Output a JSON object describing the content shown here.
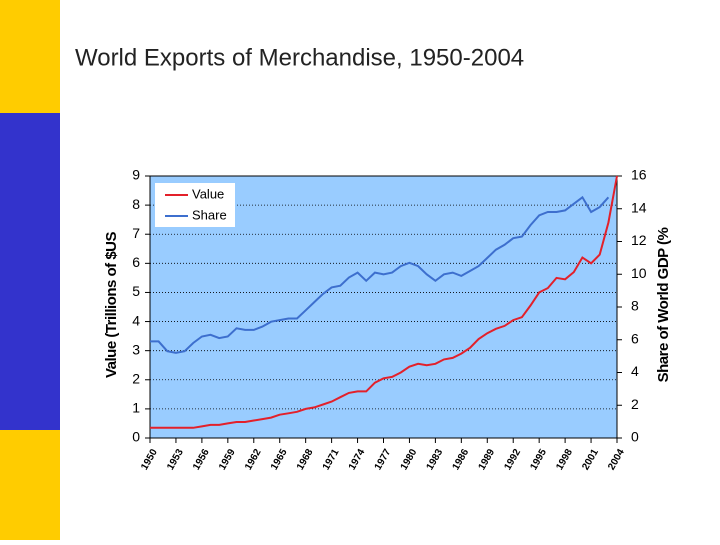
{
  "chart_data": {
    "type": "line",
    "title": "World Exports of Merchandise, 1950-2004",
    "y_label": "Value (Trillions of $US",
    "y2_label": "Share of World GDP (%",
    "x": [
      1950,
      1951,
      1952,
      1953,
      1954,
      1955,
      1956,
      1957,
      1958,
      1959,
      1960,
      1961,
      1962,
      1963,
      1964,
      1965,
      1966,
      1967,
      1968,
      1969,
      1970,
      1971,
      1972,
      1973,
      1974,
      1975,
      1976,
      1977,
      1978,
      1979,
      1980,
      1981,
      1982,
      1983,
      1984,
      1985,
      1986,
      1987,
      1988,
      1989,
      1990,
      1991,
      1992,
      1993,
      1994,
      1995,
      1996,
      1997,
      1998,
      1999,
      2000,
      2001,
      2002,
      2003,
      2004
    ],
    "series": [
      {
        "name": "Value",
        "color": "#e3202a",
        "axis": "y",
        "values": [
          0.35,
          0.35,
          0.35,
          0.35,
          0.35,
          0.35,
          0.4,
          0.45,
          0.45,
          0.5,
          0.55,
          0.55,
          0.6,
          0.65,
          0.7,
          0.8,
          0.85,
          0.9,
          1.0,
          1.05,
          1.15,
          1.25,
          1.4,
          1.55,
          1.6,
          1.6,
          1.9,
          2.05,
          2.1,
          2.25,
          2.45,
          2.55,
          2.5,
          2.55,
          2.7,
          2.75,
          2.9,
          3.1,
          3.4,
          3.6,
          3.75,
          3.85,
          4.05,
          4.15,
          4.55,
          5.0,
          5.15,
          5.5,
          5.45,
          5.7,
          6.2,
          6.0,
          6.3,
          7.4,
          9.0
        ]
      },
      {
        "name": "Share",
        "color": "#3d6fce",
        "axis": "y2",
        "values": [
          5.9,
          5.9,
          5.3,
          5.2,
          5.3,
          5.8,
          6.2,
          6.3,
          6.1,
          6.2,
          6.7,
          6.6,
          6.6,
          6.8,
          7.1,
          7.2,
          7.3,
          7.3,
          7.8,
          8.3,
          8.8,
          9.2,
          9.3,
          9.8,
          10.1,
          9.6,
          10.1,
          10.0,
          10.1,
          10.5,
          10.7,
          10.5,
          10.0,
          9.6,
          10.0,
          10.1,
          9.9,
          10.2,
          10.5,
          11.0,
          11.5,
          11.8,
          12.2,
          12.3,
          13.0,
          13.6,
          13.8,
          13.8,
          13.9,
          14.3,
          14.7,
          13.8,
          14.1,
          14.7,
          null
        ]
      }
    ],
    "xlim": [
      1950,
      2004
    ],
    "xticks": [
      1950,
      1953,
      1956,
      1959,
      1962,
      1965,
      1968,
      1971,
      1974,
      1977,
      1980,
      1983,
      1986,
      1989,
      1992,
      1995,
      1998,
      2001,
      2004
    ],
    "ylim": [
      0,
      9
    ],
    "yticks": [
      0,
      1,
      2,
      3,
      4,
      5,
      6,
      7,
      8,
      9
    ],
    "y2lim": [
      0,
      16
    ],
    "y2ticks": [
      0,
      2,
      4,
      6,
      8,
      10,
      12,
      14,
      16
    ],
    "grid": true,
    "legend": "upper left",
    "plot_background": "#99ccff"
  }
}
